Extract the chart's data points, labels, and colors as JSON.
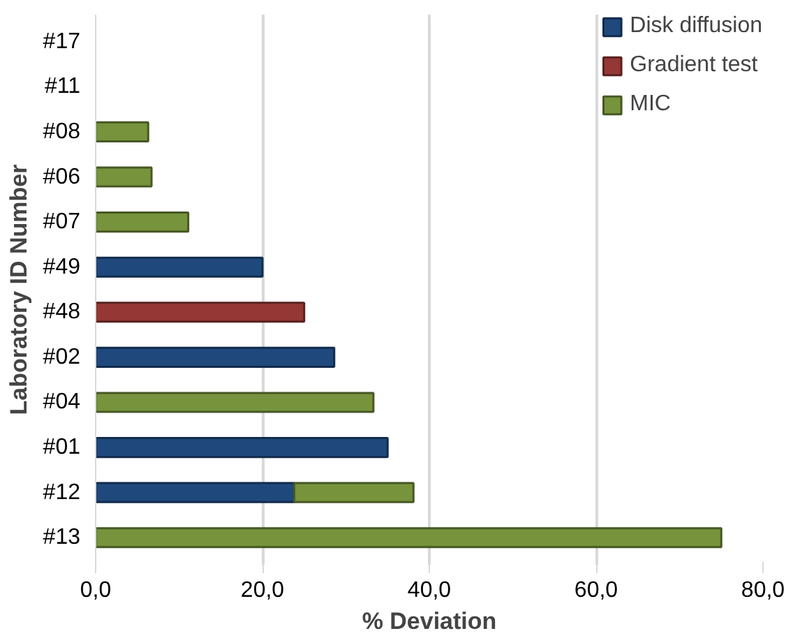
{
  "chart_data": {
    "type": "bar",
    "orientation": "horizontal",
    "stacked": true,
    "xlabel": "% Deviation",
    "ylabel": "Laboratory ID Number",
    "categories": [
      "#17",
      "#11",
      "#08",
      "#06",
      "#07",
      "#49",
      "#48",
      "#02",
      "#04",
      "#01",
      "#12",
      "#13"
    ],
    "series": [
      {
        "name": "Disk diffusion",
        "color": "#1f497d",
        "values": [
          null,
          null,
          null,
          null,
          null,
          20.0,
          null,
          28.6,
          null,
          35.0,
          23.8,
          null
        ]
      },
      {
        "name": "Gradient test",
        "color": "#953735",
        "values": [
          null,
          null,
          null,
          null,
          null,
          null,
          25.0,
          null,
          null,
          null,
          null,
          null
        ]
      },
      {
        "name": "MIC",
        "color": "#77933c",
        "values": [
          null,
          null,
          6.3,
          6.7,
          11.1,
          null,
          null,
          null,
          33.3,
          null,
          14.3,
          75.0
        ]
      }
    ],
    "xlim": [
      0,
      80
    ],
    "xticks": [
      {
        "value": 0,
        "label": "0,0"
      },
      {
        "value": 20,
        "label": "20,0"
      },
      {
        "value": 40,
        "label": "40,0"
      },
      {
        "value": 60,
        "label": "60,0"
      },
      {
        "value": 80,
        "label": "80,0"
      }
    ],
    "grid": "x",
    "legend": "top right"
  }
}
